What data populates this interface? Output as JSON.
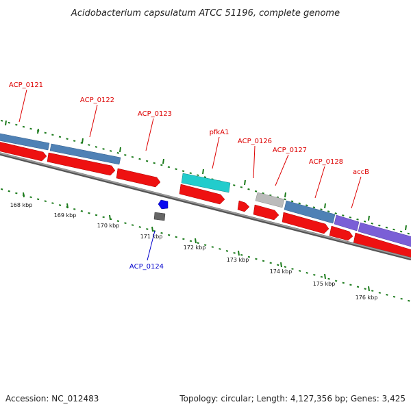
{
  "title": "Acidobacterium capsulatum ATCC 51196, complete genome",
  "footer": {
    "accession": "Accession: NC_012483",
    "summary": "Topology: circular; Length: 4,127,356 bp; Genes: 3,425"
  },
  "colors": {
    "label_red": "#dd0000",
    "label_blue": "#0000cc",
    "red_gene": "#ee1111",
    "steelblue_gene": "#4f81b5",
    "cyan_gene": "#22cccc",
    "gray_gene": "#bbbbbb",
    "purple_gene": "#7a5fd6",
    "blue_gene": "#0a0af0",
    "darkgray_gene": "#666666",
    "backbone": "#808080",
    "tick_green": "#1a7a1a"
  },
  "scale": {
    "ticks_kbp": [
      "168 kbp",
      "169 kbp",
      "170 kbp",
      "171 kbp",
      "172 kbp",
      "173 kbp",
      "174 kbp",
      "175 kbp",
      "176 kbp"
    ]
  },
  "gene_labels": [
    {
      "text": "ACP_0121",
      "color": "red"
    },
    {
      "text": "ACP_0122",
      "color": "red"
    },
    {
      "text": "ACP_0123",
      "color": "red"
    },
    {
      "text": "pfkA1",
      "color": "red"
    },
    {
      "text": "ACP_0126",
      "color": "red"
    },
    {
      "text": "ACP_0127",
      "color": "red"
    },
    {
      "text": "ACP_0128",
      "color": "red"
    },
    {
      "text": "accB",
      "color": "red"
    },
    {
      "text": "ACP_0124",
      "color": "blue"
    }
  ]
}
